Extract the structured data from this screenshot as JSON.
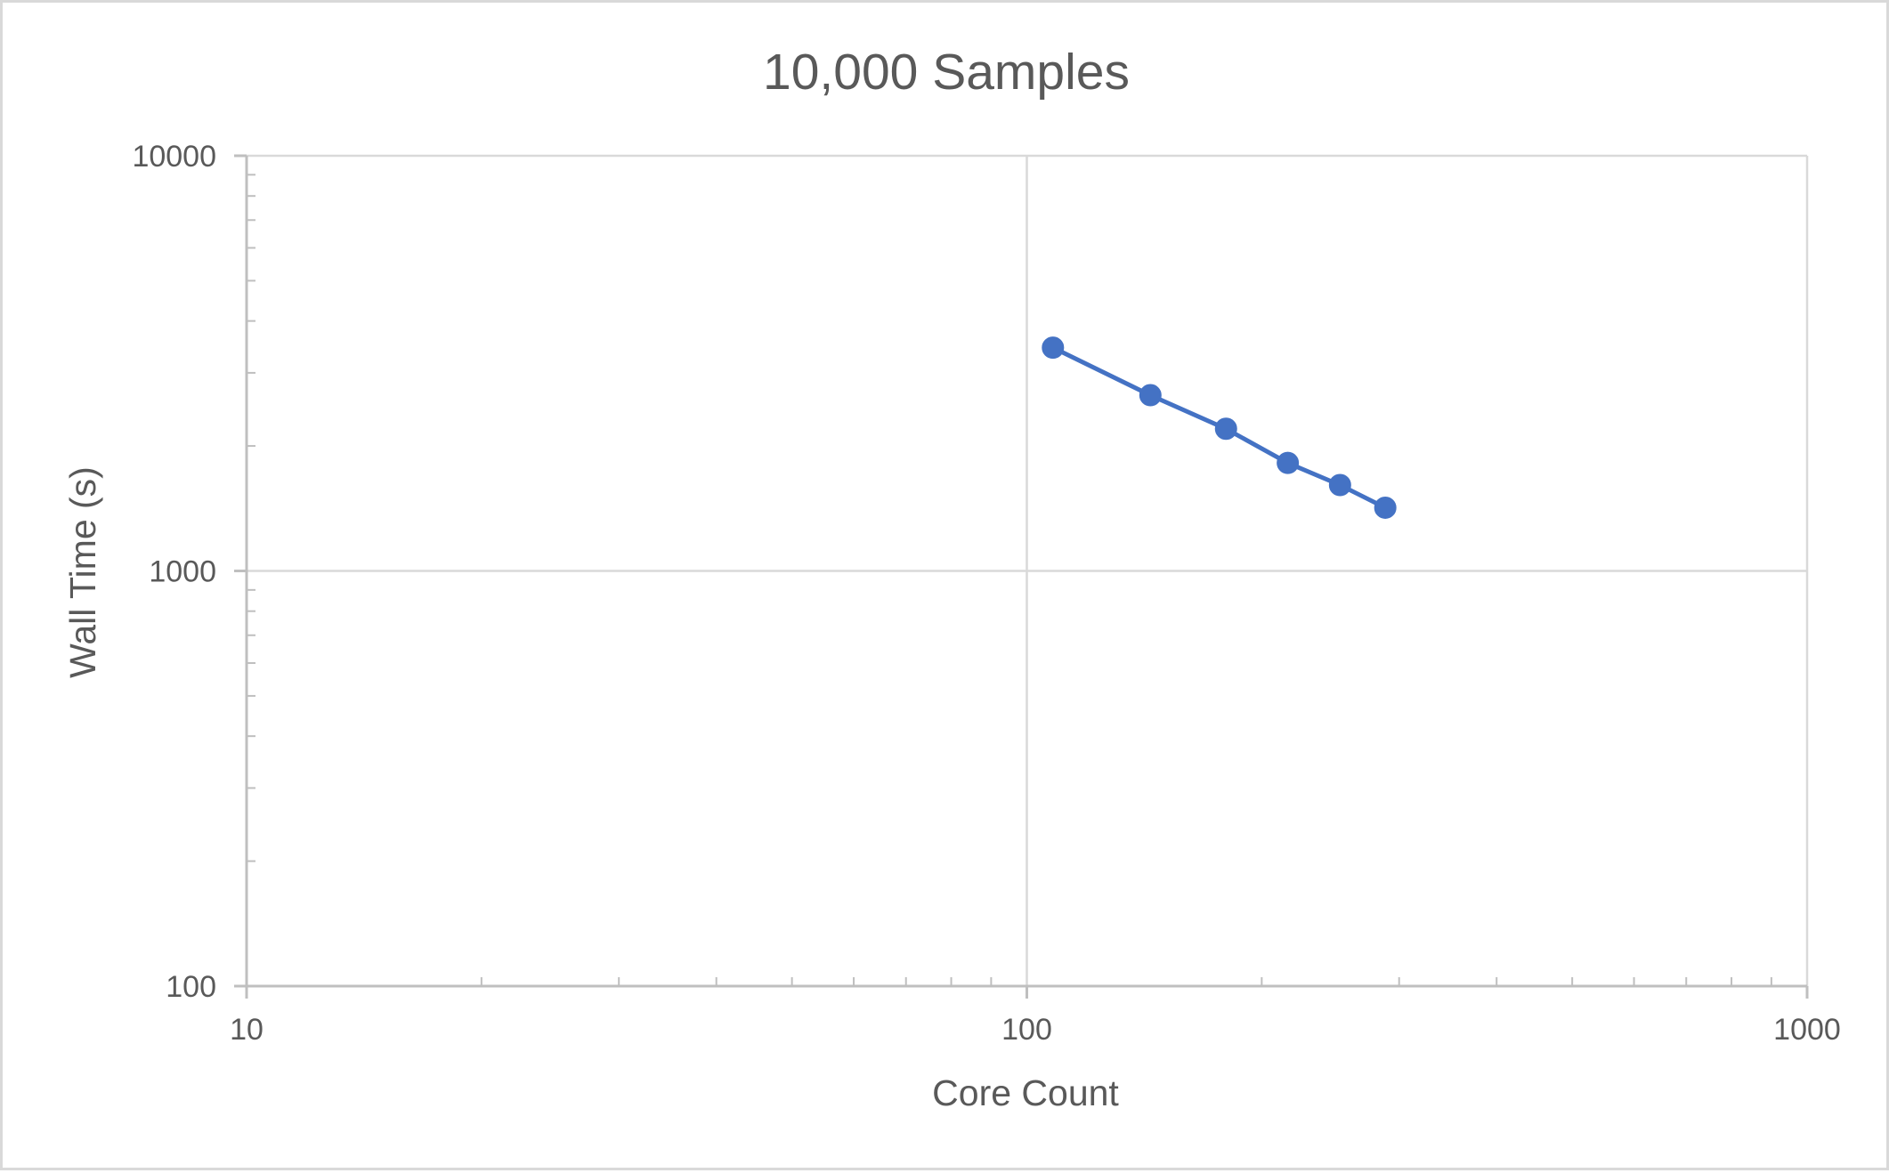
{
  "chart_data": {
    "type": "line",
    "title": "10,000 Samples",
    "xlabel": "Core Count",
    "ylabel": "Wall Time (s)",
    "x_scale": "log",
    "y_scale": "log",
    "xlim": [
      10,
      1000
    ],
    "ylim": [
      100,
      10000
    ],
    "x_ticks": [
      "10",
      "100",
      "1000"
    ],
    "y_ticks": [
      "100",
      "1000",
      "10000"
    ],
    "grid": true,
    "legend": "none",
    "series": [
      {
        "color": "#4472c4",
        "x": [
          108,
          144,
          180,
          216,
          252,
          288
        ],
        "y": [
          3450,
          2650,
          2200,
          1820,
          1610,
          1420
        ]
      }
    ]
  }
}
